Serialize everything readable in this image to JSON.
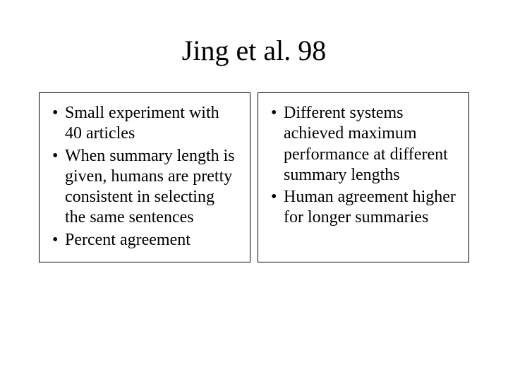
{
  "slide": {
    "title": "Jing et al. 98",
    "background_color": "#ffffff",
    "text_color": "#000000",
    "title_fontsize": 40,
    "body_fontsize": 24,
    "font_family": "Times New Roman",
    "columns": {
      "left": {
        "border_color": "#000000",
        "bullets": [
          "Small experiment with 40 articles",
          "When summary length is given, humans are pretty consistent in selecting the same sentences",
          "Percent agreement"
        ]
      },
      "right": {
        "border_color": "#000000",
        "bullets": [
          "Different systems achieved maximum performance at different summary lengths",
          "Human agreement higher for longer summaries"
        ]
      }
    }
  }
}
